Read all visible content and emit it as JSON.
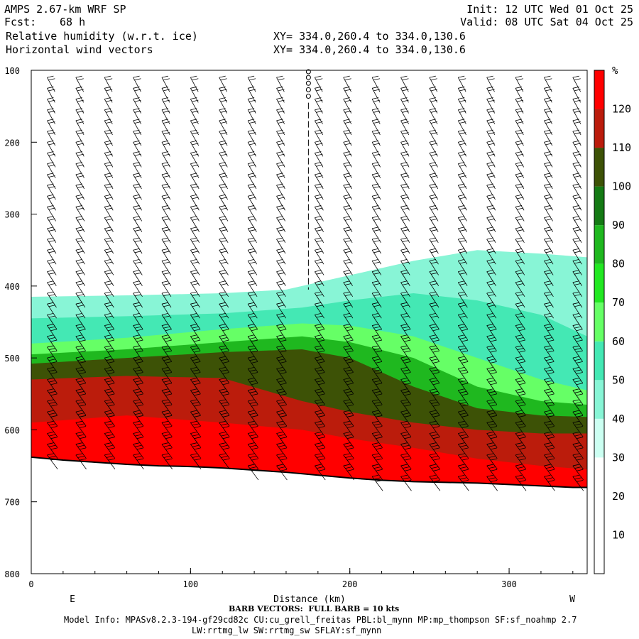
{
  "header": {
    "model": "AMPS 2.67-km WRF SP",
    "init": "Init: 12 UTC Wed 01 Oct 25",
    "fcst_label": "Fcst:",
    "fcst_value": "68 h",
    "valid": "Valid: 08 UTC Sat 04 Oct 25",
    "field1": "Relative humidity (w.r.t. ice)",
    "field2": "Horizontal wind vectors",
    "xy1": "XY= 334.0,260.4 to 334.0,130.6",
    "xy2": "XY= 334.0,260.4 to 334.0,130.6"
  },
  "footer": {
    "barb_note": "BARB VECTORS:  FULL BARB = 10 kts",
    "model_info": "Model Info: MPASv8.2.3-194-gf29cd82c CU:cu_grell_freitas PBL:bl_mynn MP:mp_thompson SF:sf_noahmp 2.7",
    "model_info2": "LW:rrtmg_lw SW:rrtmg_sw SFLAY:sf_mynn"
  },
  "chart_data": {
    "type": "heatmap",
    "title": "Relative humidity (w.r.t. ice)",
    "xlabel": "Distance (km)",
    "ylabel": "",
    "xlim": [
      0,
      349
    ],
    "ylim": [
      800,
      100
    ],
    "x_ticks": [
      0,
      100,
      200,
      300
    ],
    "y_ticks": [
      100,
      200,
      300,
      400,
      500,
      600,
      700,
      800
    ],
    "x_end_labels": {
      "left": "E",
      "right": "W"
    },
    "colorbar": {
      "unit": "%",
      "levels": [
        10,
        20,
        30,
        40,
        50,
        60,
        70,
        80,
        90,
        100,
        110,
        120
      ],
      "colors": [
        "#ffffff",
        "#ffffff",
        "#ffffff",
        "#ccfff2",
        "#88f5d6",
        "#44e8b4",
        "#66ff66",
        "#22e822",
        "#1fb81f",
        "#147a14",
        "#3d5206",
        "#bb1c0c",
        "#ff0000"
      ]
    },
    "terrain_pressure": [
      [
        0,
        638
      ],
      [
        20,
        642
      ],
      [
        40,
        645
      ],
      [
        60,
        648
      ],
      [
        80,
        650
      ],
      [
        100,
        651
      ],
      [
        120,
        653
      ],
      [
        140,
        656
      ],
      [
        160,
        659
      ],
      [
        180,
        663
      ],
      [
        200,
        667
      ],
      [
        220,
        670
      ],
      [
        240,
        672
      ],
      [
        260,
        673
      ],
      [
        280,
        674
      ],
      [
        300,
        676
      ],
      [
        320,
        678
      ],
      [
        340,
        680
      ],
      [
        349,
        680
      ]
    ],
    "rh_layers": [
      {
        "level": 40,
        "top": [
          [
            0,
            415
          ],
          [
            60,
            413
          ],
          [
            120,
            410
          ],
          [
            160,
            405
          ],
          [
            200,
            385
          ],
          [
            240,
            365
          ],
          [
            280,
            350
          ],
          [
            320,
            355
          ],
          [
            349,
            360
          ]
        ]
      },
      {
        "level": 50,
        "top": [
          [
            0,
            445
          ],
          [
            60,
            442
          ],
          [
            120,
            438
          ],
          [
            170,
            430
          ],
          [
            200,
            420
          ],
          [
            240,
            410
          ],
          [
            280,
            420
          ],
          [
            320,
            440
          ],
          [
            349,
            470
          ]
        ]
      },
      {
        "level": 60,
        "top": [
          [
            0,
            480
          ],
          [
            60,
            472
          ],
          [
            120,
            460
          ],
          [
            170,
            452
          ],
          [
            200,
            455
          ],
          [
            240,
            470
          ],
          [
            280,
            500
          ],
          [
            320,
            530
          ],
          [
            349,
            545
          ]
        ]
      },
      {
        "level": 80,
        "top": [
          [
            0,
            495
          ],
          [
            60,
            488
          ],
          [
            120,
            478
          ],
          [
            170,
            470
          ],
          [
            200,
            478
          ],
          [
            240,
            500
          ],
          [
            280,
            540
          ],
          [
            320,
            560
          ],
          [
            349,
            565
          ]
        ]
      },
      {
        "level": 100,
        "top": [
          [
            0,
            508
          ],
          [
            60,
            500
          ],
          [
            120,
            492
          ],
          [
            170,
            488
          ],
          [
            200,
            500
          ],
          [
            240,
            540
          ],
          [
            280,
            570
          ],
          [
            320,
            580
          ],
          [
            349,
            582
          ]
        ]
      },
      {
        "level": 110,
        "top": [
          [
            0,
            530
          ],
          [
            60,
            525
          ],
          [
            120,
            528
          ],
          [
            170,
            560
          ],
          [
            200,
            575
          ],
          [
            240,
            590
          ],
          [
            280,
            600
          ],
          [
            320,
            605
          ],
          [
            349,
            605
          ]
        ]
      },
      {
        "level": 120,
        "top": [
          [
            0,
            590
          ],
          [
            60,
            580
          ],
          [
            120,
            590
          ],
          [
            170,
            600
          ],
          [
            200,
            612
          ],
          [
            240,
            625
          ],
          [
            280,
            640
          ],
          [
            320,
            650
          ],
          [
            349,
            655
          ]
        ]
      }
    ],
    "wind_barb_columns_km": [
      10,
      28,
      46,
      64,
      82,
      100,
      118,
      136,
      154,
      178,
      196,
      214,
      232,
      250,
      268,
      286,
      304,
      322,
      340
    ],
    "dashed_column_km": 174
  }
}
